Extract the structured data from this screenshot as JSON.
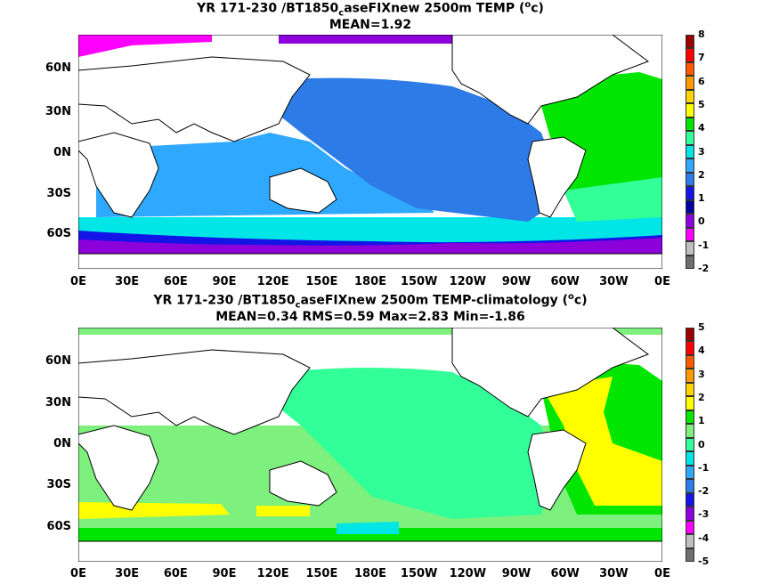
{
  "panel1": {
    "title_pre": "YR 171-230 /BT1850",
    "title_sub": "c",
    "title_mid": "aseFIXnew 2500m TEMP (",
    "title_sup": "o",
    "title_post": "c)",
    "stats": "MEAN=1.92",
    "colorbar": {
      "labels": [
        "8",
        "7",
        "6",
        "5",
        "4",
        "3",
        "2",
        "1",
        "0",
        "-1",
        "-2"
      ],
      "colors": [
        "#9b0000",
        "#ff0000",
        "#ff5a00",
        "#ff9900",
        "#ffd400",
        "#ffff00",
        "#00e600",
        "#33ff99",
        "#00e5e5",
        "#2fa8ff",
        "#2d7be6",
        "#1414e6",
        "#0000a0",
        "#8c00dc",
        "#ff00ff",
        "#bfbfbf",
        "#6e6e6e"
      ]
    }
  },
  "panel2": {
    "title_pre": "YR 171-230 /BT1850",
    "title_sub": "c",
    "title_mid": "aseFIXnew 2500m TEMP-climatology (",
    "title_sup": "o",
    "title_post": "c)",
    "stats": "MEAN=0.34   RMS=0.59   Max=2.83   Min=-1.86",
    "colorbar": {
      "labels": [
        "5",
        "4",
        "3",
        "2",
        "1",
        "0",
        "-1",
        "-2",
        "-3",
        "-4",
        "-5"
      ],
      "colors": [
        "#9b0000",
        "#ff0000",
        "#ff5a00",
        "#ff9900",
        "#ffd400",
        "#ffff00",
        "#00e600",
        "#7df07d",
        "#33ff99",
        "#00e5e5",
        "#2fa8ff",
        "#2d7be6",
        "#1414e6",
        "#8c00dc",
        "#ff00ff",
        "#bfbfbf",
        "#6e6e6e"
      ]
    }
  },
  "lat_labels": [
    "60N",
    "30N",
    "0N",
    "30S",
    "60S"
  ],
  "lon_labels": [
    "0E",
    "30E",
    "60E",
    "90E",
    "120E",
    "150E",
    "180E",
    "150W",
    "120W",
    "90W",
    "60W",
    "30W",
    "0E"
  ]
}
